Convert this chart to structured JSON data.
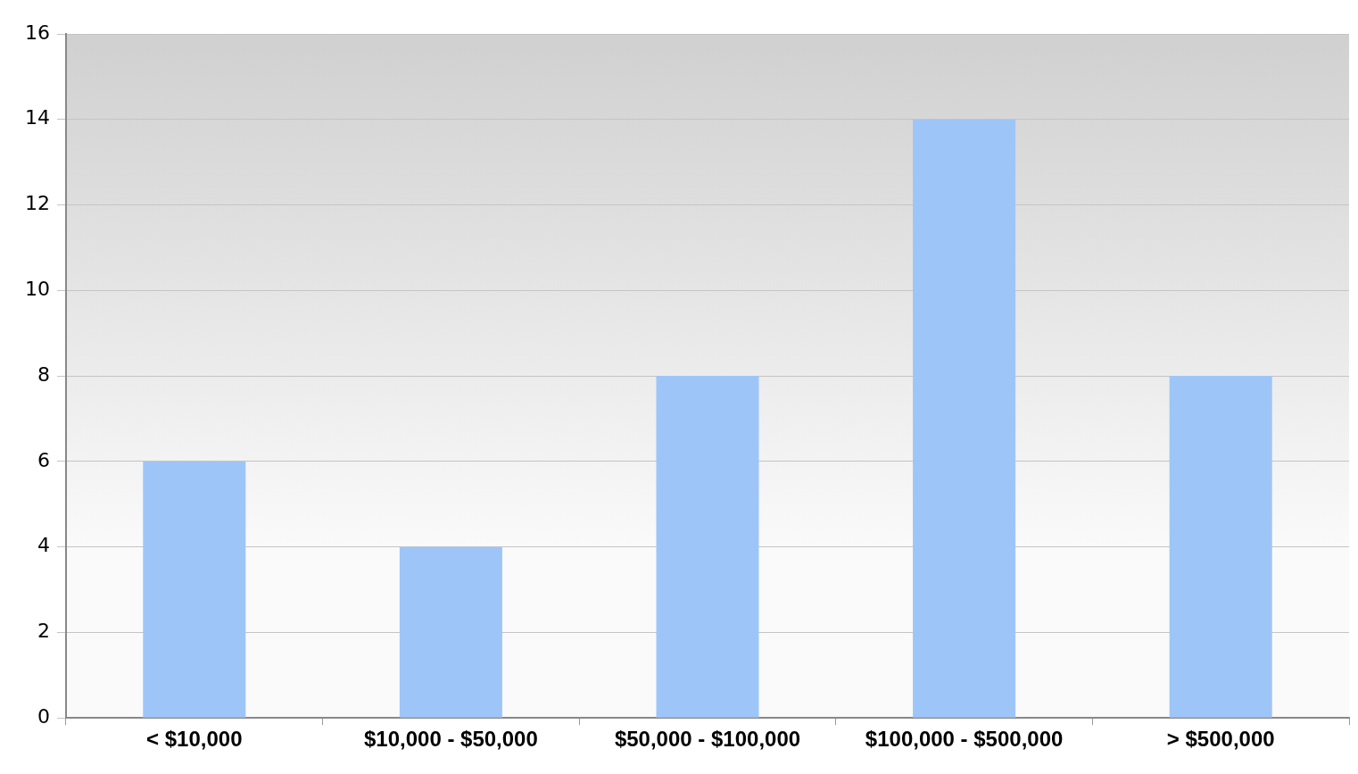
{
  "chart_data": {
    "type": "bar",
    "categories": [
      "< $10,000",
      "$10,000 - $50,000",
      "$50,000 - $100,000",
      "$100,000 - $500,000",
      "> $500,000"
    ],
    "values": [
      6,
      4,
      8,
      14,
      8
    ],
    "color": "#9ec5f8",
    "ylim": [
      0,
      16
    ],
    "yticks": [
      0,
      2,
      4,
      6,
      8,
      10,
      12,
      14,
      16
    ],
    "grid": "y",
    "legend": false
  }
}
